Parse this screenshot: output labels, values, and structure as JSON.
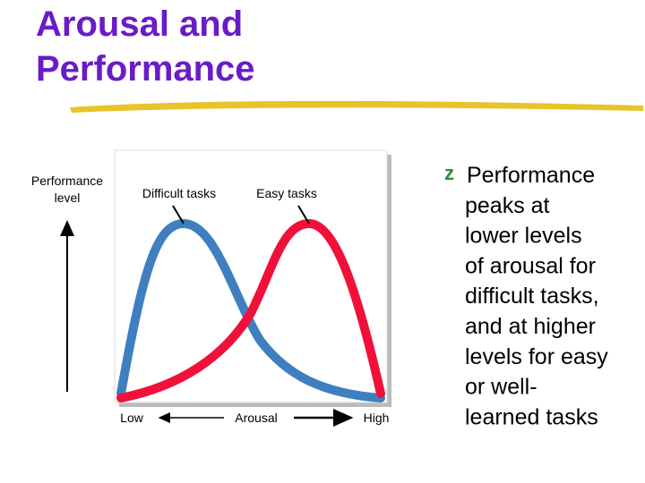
{
  "title_lines": [
    "Arousal and",
    "Performance"
  ],
  "diagram": {
    "y_axis_label_lines": [
      "Performance",
      "level"
    ],
    "curve_labels": [
      "Difficult tasks",
      "Easy tasks"
    ],
    "x_axis": {
      "low": "Low",
      "label": "Arousal",
      "high": "High"
    }
  },
  "bullet": {
    "marker": "z",
    "lines": [
      "Performance",
      "peaks at",
      "lower levels",
      "of arousal for",
      "difficult tasks,",
      "and at higher",
      "levels for easy",
      "or well-",
      "learned tasks"
    ]
  }
}
